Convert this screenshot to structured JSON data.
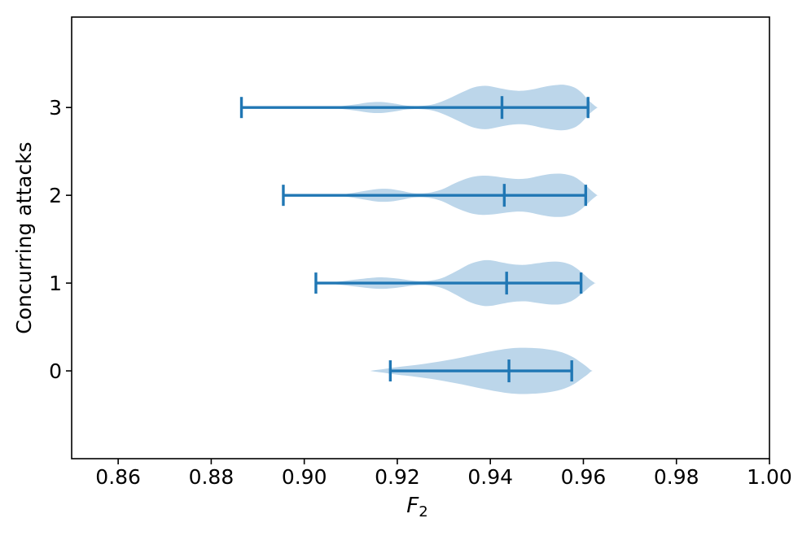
{
  "figure": {
    "background": "#ffffff"
  },
  "chart_data": {
    "type": "violin",
    "orientation": "horizontal",
    "title": "",
    "xlabel": "F",
    "xlabel_subscript": "2",
    "ylabel": "Concurring attacks",
    "xlim": [
      0.85,
      1.0
    ],
    "ylim": [
      -1.0,
      4.03
    ],
    "grid": false,
    "legend": null,
    "xticks": [
      0.86,
      0.88,
      0.9,
      0.92,
      0.94,
      0.96,
      0.98,
      1.0
    ],
    "xtick_labels": [
      "0.86",
      "0.88",
      "0.90",
      "0.92",
      "0.94",
      "0.96",
      "0.98",
      "1.00"
    ],
    "yticks": [
      0,
      1,
      2,
      3
    ],
    "ytick_labels": [
      "0",
      "1",
      "2",
      "3"
    ],
    "colors": {
      "violin_fill": "#bcd6ea",
      "violin_line": "#2077b4",
      "axis": "#000000",
      "text": "#000000"
    },
    "series": [
      {
        "group": "0",
        "position": 0,
        "min": 0.9185,
        "mean": 0.944,
        "max": 0.9575,
        "profile": [
          [
            0.9145,
            0.003
          ],
          [
            0.917,
            0.02
          ],
          [
            0.9195,
            0.04
          ],
          [
            0.9225,
            0.058
          ],
          [
            0.926,
            0.082
          ],
          [
            0.93,
            0.115
          ],
          [
            0.934,
            0.155
          ],
          [
            0.938,
            0.2
          ],
          [
            0.9415,
            0.235
          ],
          [
            0.9445,
            0.258
          ],
          [
            0.9475,
            0.263
          ],
          [
            0.9505,
            0.256
          ],
          [
            0.9535,
            0.235
          ],
          [
            0.956,
            0.2
          ],
          [
            0.958,
            0.15
          ],
          [
            0.9595,
            0.095
          ],
          [
            0.9608,
            0.045
          ],
          [
            0.9615,
            0.012
          ],
          [
            0.962,
            0.0
          ]
        ]
      },
      {
        "group": "1",
        "position": 1,
        "min": 0.9025,
        "mean": 0.9435,
        "max": 0.9595,
        "profile": [
          [
            0.903,
            0.003
          ],
          [
            0.907,
            0.015
          ],
          [
            0.911,
            0.04
          ],
          [
            0.9145,
            0.06
          ],
          [
            0.917,
            0.065
          ],
          [
            0.92,
            0.052
          ],
          [
            0.9235,
            0.028
          ],
          [
            0.9265,
            0.025
          ],
          [
            0.9295,
            0.055
          ],
          [
            0.9325,
            0.13
          ],
          [
            0.9355,
            0.215
          ],
          [
            0.938,
            0.255
          ],
          [
            0.94,
            0.26
          ],
          [
            0.9425,
            0.235
          ],
          [
            0.945,
            0.213
          ],
          [
            0.9475,
            0.208
          ],
          [
            0.95,
            0.225
          ],
          [
            0.9525,
            0.242
          ],
          [
            0.955,
            0.242
          ],
          [
            0.957,
            0.215
          ],
          [
            0.9585,
            0.17
          ],
          [
            0.96,
            0.105
          ],
          [
            0.9613,
            0.045
          ],
          [
            0.9625,
            0.0
          ]
        ]
      },
      {
        "group": "2",
        "position": 2,
        "min": 0.8955,
        "mean": 0.943,
        "max": 0.9605,
        "profile": [
          [
            0.906,
            0.003
          ],
          [
            0.909,
            0.015
          ],
          [
            0.9125,
            0.045
          ],
          [
            0.9155,
            0.07
          ],
          [
            0.918,
            0.073
          ],
          [
            0.9205,
            0.055
          ],
          [
            0.9235,
            0.025
          ],
          [
            0.9265,
            0.027
          ],
          [
            0.9295,
            0.065
          ],
          [
            0.9325,
            0.14
          ],
          [
            0.9355,
            0.2
          ],
          [
            0.938,
            0.222
          ],
          [
            0.9405,
            0.218
          ],
          [
            0.943,
            0.2
          ],
          [
            0.9455,
            0.186
          ],
          [
            0.948,
            0.192
          ],
          [
            0.9505,
            0.22
          ],
          [
            0.953,
            0.243
          ],
          [
            0.9555,
            0.245
          ],
          [
            0.9575,
            0.222
          ],
          [
            0.959,
            0.18
          ],
          [
            0.9605,
            0.115
          ],
          [
            0.9618,
            0.05
          ],
          [
            0.963,
            0.0
          ]
        ]
      },
      {
        "group": "3",
        "position": 3,
        "min": 0.8865,
        "mean": 0.9425,
        "max": 0.961,
        "profile": [
          [
            0.904,
            0.003
          ],
          [
            0.9075,
            0.013
          ],
          [
            0.911,
            0.035
          ],
          [
            0.914,
            0.058
          ],
          [
            0.9165,
            0.063
          ],
          [
            0.919,
            0.048
          ],
          [
            0.922,
            0.022
          ],
          [
            0.925,
            0.018
          ],
          [
            0.928,
            0.04
          ],
          [
            0.931,
            0.1
          ],
          [
            0.934,
            0.175
          ],
          [
            0.9365,
            0.23
          ],
          [
            0.939,
            0.247
          ],
          [
            0.9415,
            0.225
          ],
          [
            0.944,
            0.2
          ],
          [
            0.9465,
            0.19
          ],
          [
            0.949,
            0.205
          ],
          [
            0.9515,
            0.235
          ],
          [
            0.954,
            0.255
          ],
          [
            0.956,
            0.258
          ],
          [
            0.958,
            0.23
          ],
          [
            0.9595,
            0.175
          ],
          [
            0.9608,
            0.1
          ],
          [
            0.962,
            0.04
          ],
          [
            0.963,
            0.0
          ]
        ]
      }
    ]
  }
}
